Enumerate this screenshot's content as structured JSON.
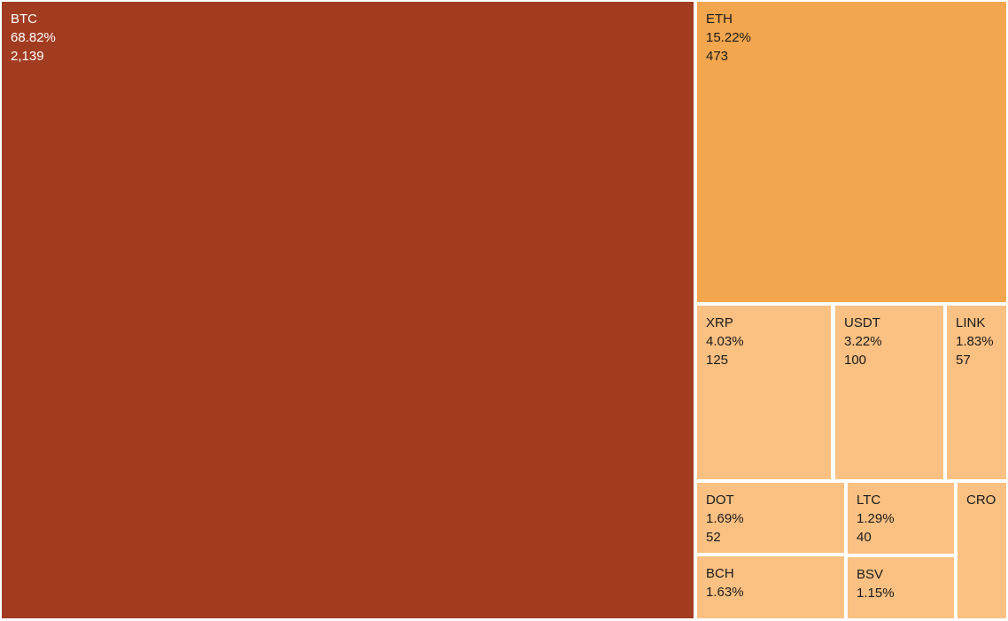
{
  "chart_data": {
    "type": "treemap",
    "legend": "none",
    "layout_hint": "squarified treemap; BTC fills left ~69% of canvas, remaining coins tile the right column top-to-bottom by size; ~4px white gutters between tiles",
    "colors": {
      "background": "#ffffff",
      "btc_tile": "#a23c21",
      "eth_tile": "#f3a64d",
      "minor_tile": "#fbc183",
      "btc_text": "#ffffff",
      "minor_text": "#1a1a1a"
    },
    "items": [
      {
        "symbol": "BTC",
        "percent": "68.82%",
        "percent_value": 68.82,
        "value": "2,139",
        "value_number": 2139,
        "color": "#a23c21",
        "text_color": "#ffffff"
      },
      {
        "symbol": "ETH",
        "percent": "15.22%",
        "percent_value": 15.22,
        "value": "473",
        "value_number": 473,
        "color": "#f3a64d",
        "text_color": "#1a1a1a"
      },
      {
        "symbol": "XRP",
        "percent": "4.03%",
        "percent_value": 4.03,
        "value": "125",
        "value_number": 125,
        "color": "#fbc183",
        "text_color": "#1a1a1a"
      },
      {
        "symbol": "USDT",
        "percent": "3.22%",
        "percent_value": 3.22,
        "value": "100",
        "value_number": 100,
        "color": "#fbc183",
        "text_color": "#1a1a1a"
      },
      {
        "symbol": "LINK",
        "percent": "1.83%",
        "percent_value": 1.83,
        "value": "57",
        "value_number": 57,
        "color": "#fbc183",
        "text_color": "#1a1a1a"
      },
      {
        "symbol": "DOT",
        "percent": "1.69%",
        "percent_value": 1.69,
        "value": "52",
        "value_number": 52,
        "color": "#fbc183",
        "text_color": "#1a1a1a"
      },
      {
        "symbol": "BCH",
        "percent": "1.63%",
        "percent_value": 1.63,
        "color": "#fbc183",
        "text_color": "#1a1a1a"
      },
      {
        "symbol": "LTC",
        "percent": "1.29%",
        "percent_value": 1.29,
        "value": "40",
        "value_number": 40,
        "color": "#fbc183",
        "text_color": "#1a1a1a"
      },
      {
        "symbol": "BSV",
        "percent": "1.15%",
        "percent_value": 1.15,
        "color": "#fbc183",
        "text_color": "#1a1a1a"
      },
      {
        "symbol": "CRO",
        "color": "#fbc183",
        "text_color": "#1a1a1a"
      }
    ]
  }
}
